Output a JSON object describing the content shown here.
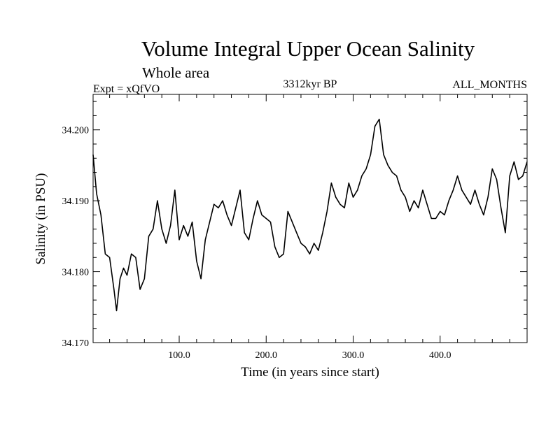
{
  "chart_data": {
    "type": "line",
    "title": "Volume Integral Upper Ocean Salinity",
    "subtitle": "Whole area",
    "left_note": "Expt = xQfVO",
    "center_note": "3312kyr BP",
    "right_note": "ALL_MONTHS",
    "xlabel": "Time (in years since start)",
    "ylabel": "Salinity (in PSU)",
    "xlim": [
      1,
      500
    ],
    "ylim": [
      34.17,
      34.205
    ],
    "x_ticks": [
      100,
      200,
      300,
      400
    ],
    "x_tick_labels": [
      "100.0",
      "200.0",
      "300.0",
      "400.0"
    ],
    "y_ticks": [
      34.17,
      34.18,
      34.19,
      34.2
    ],
    "y_tick_labels": [
      "34.170",
      "34.180",
      "34.190",
      "34.200"
    ],
    "series": [
      {
        "name": "salinity",
        "color": "#000000",
        "x": [
          1,
          5,
          10,
          15,
          20,
          25,
          28,
          32,
          36,
          40,
          45,
          50,
          55,
          60,
          65,
          70,
          75,
          80,
          85,
          90,
          95,
          100,
          105,
          110,
          115,
          120,
          125,
          130,
          135,
          140,
          145,
          150,
          155,
          160,
          165,
          170,
          175,
          180,
          185,
          190,
          195,
          200,
          205,
          210,
          215,
          220,
          225,
          230,
          235,
          240,
          245,
          250,
          255,
          260,
          265,
          270,
          275,
          280,
          285,
          290,
          295,
          300,
          305,
          310,
          315,
          320,
          325,
          330,
          335,
          340,
          345,
          350,
          355,
          360,
          365,
          370,
          375,
          380,
          385,
          390,
          395,
          400,
          405,
          410,
          415,
          420,
          425,
          430,
          435,
          440,
          445,
          450,
          455,
          460,
          465,
          470,
          475,
          480,
          485,
          490,
          495,
          500
        ],
        "values": [
          34.1965,
          34.191,
          34.188,
          34.1825,
          34.182,
          34.1775,
          34.1745,
          34.179,
          34.1805,
          34.1795,
          34.1825,
          34.182,
          34.1775,
          34.179,
          34.185,
          34.186,
          34.19,
          34.186,
          34.184,
          34.1865,
          34.1915,
          34.1845,
          34.1865,
          34.185,
          34.187,
          34.1815,
          34.179,
          34.1845,
          34.187,
          34.1895,
          34.189,
          34.19,
          34.188,
          34.1865,
          34.189,
          34.1915,
          34.1855,
          34.1845,
          34.1875,
          34.19,
          34.188,
          34.1875,
          34.187,
          34.1835,
          34.182,
          34.1825,
          34.1885,
          34.187,
          34.1855,
          34.184,
          34.1835,
          34.1825,
          34.184,
          34.183,
          34.1855,
          34.1885,
          34.1925,
          34.1905,
          34.1895,
          34.189,
          34.1925,
          34.1905,
          34.1915,
          34.1935,
          34.1945,
          34.1965,
          34.2005,
          34.2015,
          34.1965,
          34.195,
          34.194,
          34.1935,
          34.1915,
          34.1905,
          34.1885,
          34.19,
          34.189,
          34.1915,
          34.1895,
          34.1875,
          34.1875,
          34.1885,
          34.188,
          34.19,
          34.1915,
          34.1935,
          34.1915,
          34.1905,
          34.1895,
          34.1915,
          34.1895,
          34.188,
          34.1905,
          34.1945,
          34.193,
          34.189,
          34.1855,
          34.1935,
          34.1955,
          34.193,
          34.1935,
          34.1955
        ]
      }
    ]
  }
}
